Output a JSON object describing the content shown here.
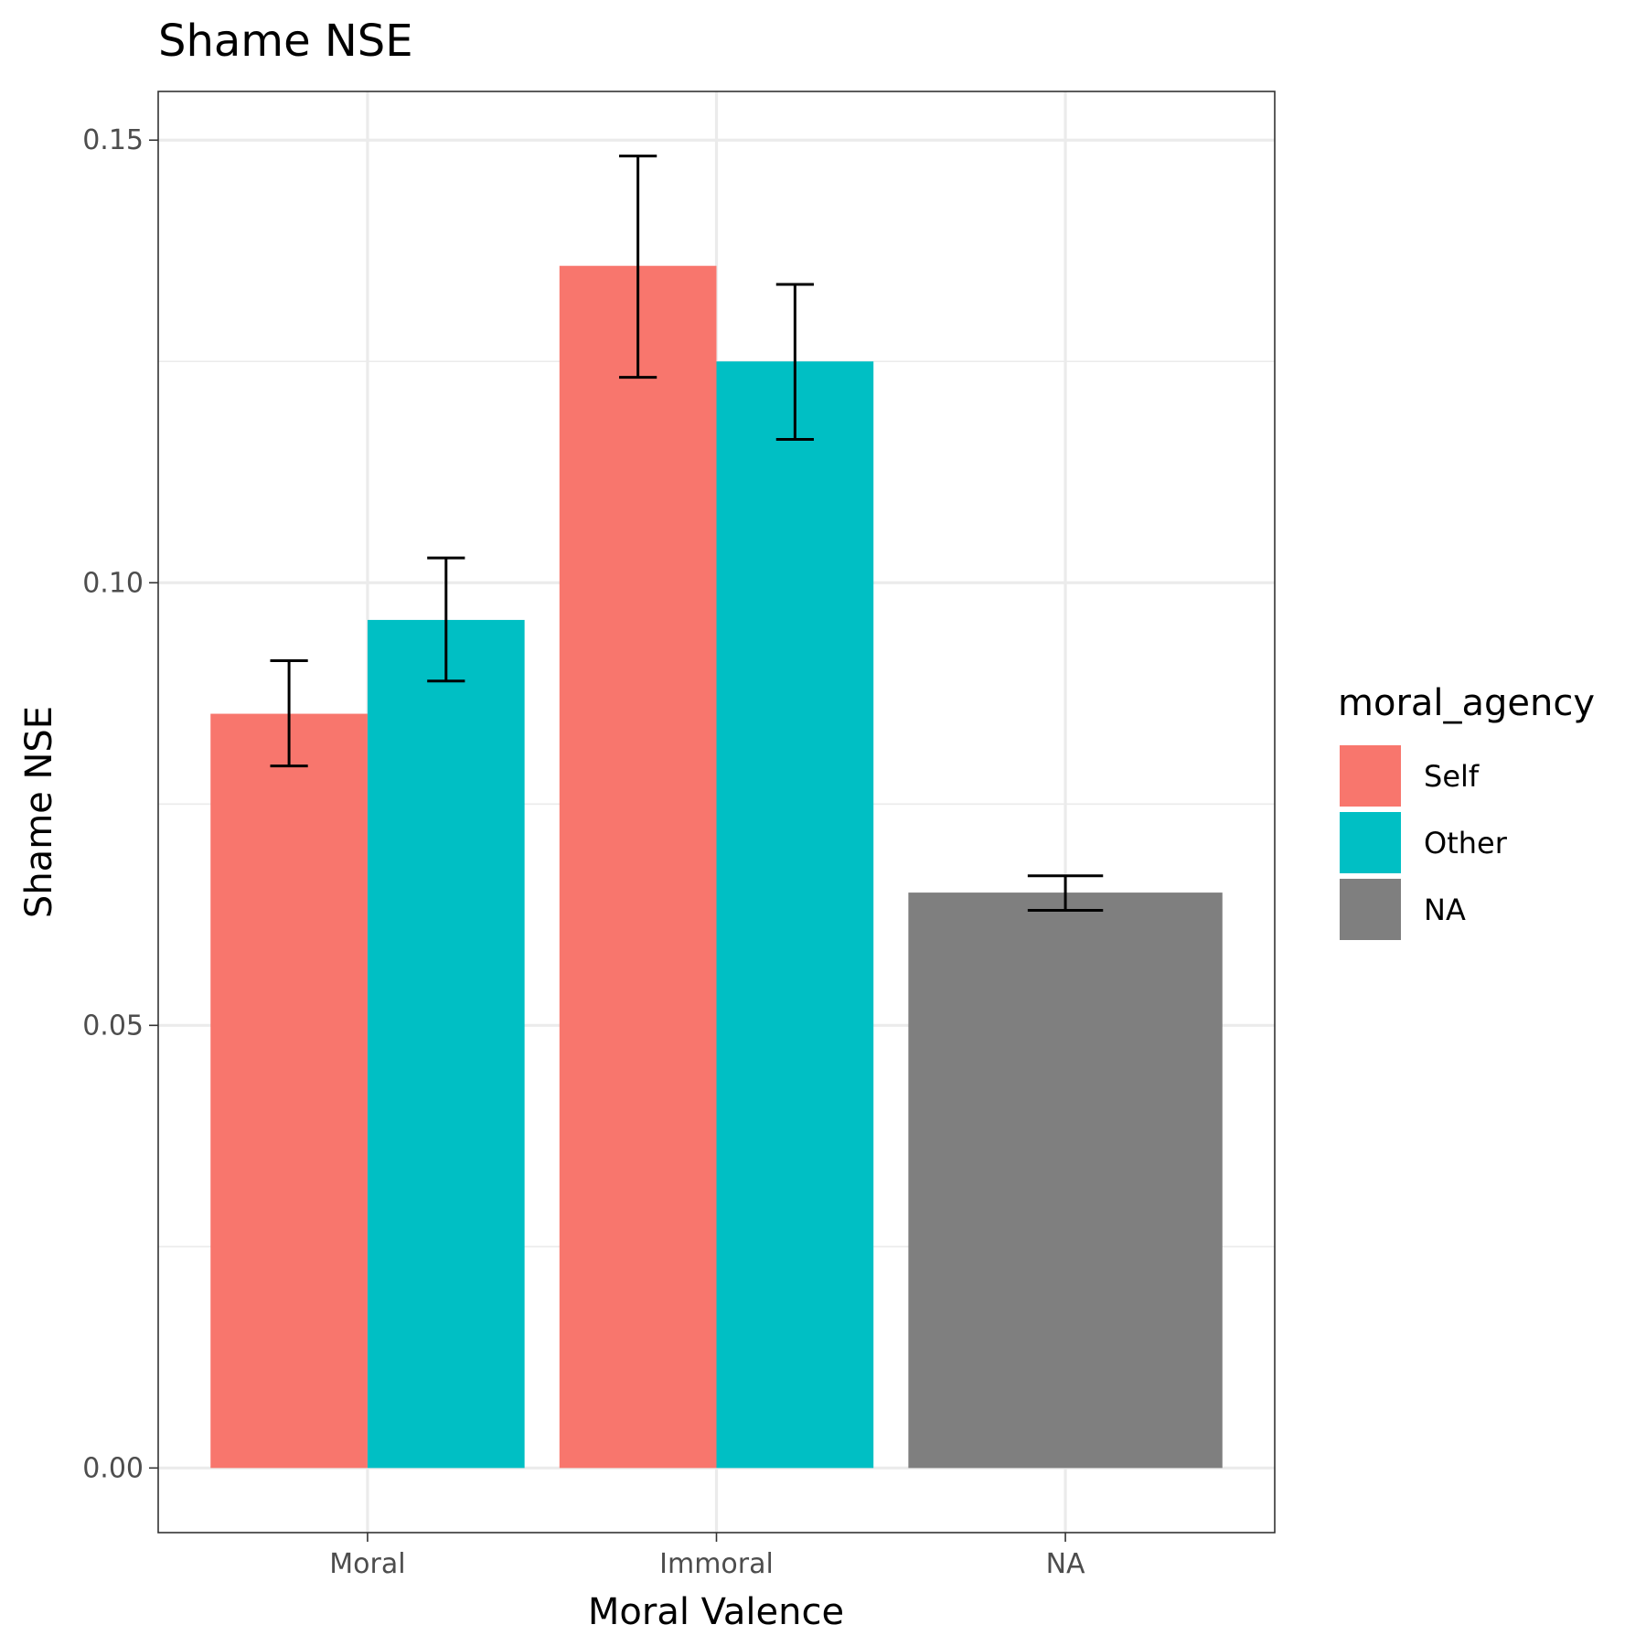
{
  "chart_data": {
    "type": "bar",
    "title": "Shame NSE",
    "xlabel": "Moral Valence",
    "ylabel": "Shame NSE",
    "categories": [
      "Moral",
      "Immoral",
      "NA"
    ],
    "series": [
      {
        "name": "Self",
        "color": "#F8766D",
        "values": [
          0.0852,
          0.1358,
          null
        ],
        "error_low": [
          0.0793,
          0.1232,
          null
        ],
        "error_high": [
          0.0912,
          0.1482,
          null
        ]
      },
      {
        "name": "Other",
        "color": "#00BFC4",
        "values": [
          0.0958,
          0.125,
          null
        ],
        "error_low": [
          0.0889,
          0.1162,
          null
        ],
        "error_high": [
          0.1028,
          0.1337,
          null
        ]
      },
      {
        "name": "NA",
        "color": "#7F7F7F",
        "values": [
          null,
          null,
          0.065
        ],
        "error_low": [
          null,
          null,
          0.063
        ],
        "error_high": [
          null,
          null,
          0.0669
        ]
      }
    ],
    "ylim": [
      -0.0073,
      0.1555
    ],
    "yticks": [
      0.0,
      0.05,
      0.1,
      0.15
    ],
    "ytick_labels": [
      "0.00",
      "0.05",
      "0.10",
      "0.15"
    ],
    "grid": true,
    "legend": {
      "title": "moral_agency",
      "entries": [
        "Self",
        "Other",
        "NA"
      ],
      "position": "right"
    }
  }
}
